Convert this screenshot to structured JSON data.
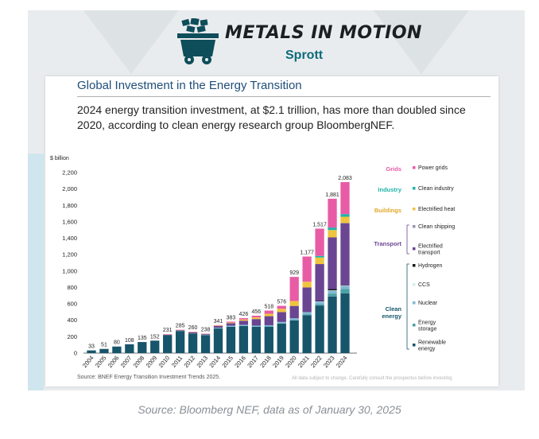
{
  "header": {
    "logo_text": "METALS IN MOTION",
    "logo_sub": "Sprott",
    "cart_icon": "mine-cart-icon"
  },
  "slide": {
    "title": "Global Investment in the Energy Transition",
    "subtitle": "2024 energy transition investment, at $2.1 trillion, has more than doubled since 2020, according to clean energy research group BloombergNEF.",
    "source": "Source: BNEF Energy Transition Investment Trends 2025.",
    "disclaimer": "All data subject to change. Carefully consult the prospectus before investing."
  },
  "caption": "Source: Bloomberg NEF, data as of January 30, 2025",
  "chart_data": {
    "type": "bar",
    "stacked": true,
    "ylabel": "$ billion",
    "ylim": [
      0,
      2200
    ],
    "yticks": [
      0,
      200,
      400,
      600,
      800,
      1000,
      1200,
      1400,
      1600,
      1800,
      2000,
      2200
    ],
    "ytick_labels": [
      "0",
      "200",
      "400",
      "600",
      "800",
      "1,000",
      "1,200",
      "1,400",
      "1,600",
      "1,800",
      "2,000",
      "2,200"
    ],
    "grid": false,
    "legend_placement": "right",
    "categories": [
      "2004",
      "2005",
      "2006",
      "2007",
      "2008",
      "2009",
      "2010",
      "2011",
      "2012",
      "2013",
      "2014",
      "2015",
      "2016",
      "2017",
      "2018",
      "2019",
      "2020",
      "2021",
      "2022",
      "2023",
      "2024"
    ],
    "totals": [
      33,
      51,
      80,
      108,
      135,
      152,
      231,
      285,
      260,
      238,
      341,
      383,
      426,
      456,
      518,
      576,
      929,
      1177,
      1517,
      1881,
      2083
    ],
    "total_labels": [
      "33",
      "51",
      "80",
      "108",
      "135",
      "152",
      "231",
      "285",
      "260",
      "238",
      "341",
      "383",
      "426",
      "456",
      "518",
      "576",
      "929",
      "1,177",
      "1,517",
      "1,881",
      "2,083"
    ],
    "series": [
      {
        "name": "Renewable energy",
        "color": "#17556b",
        "values": [
          33,
          51,
          80,
          108,
          135,
          152,
          220,
          270,
          240,
          220,
          300,
          320,
          330,
          320,
          320,
          360,
          400,
          460,
          580,
          690,
          728
        ]
      },
      {
        "name": "Energy storage",
        "color": "#4aa0a5",
        "values": [
          0,
          0,
          0,
          0,
          0,
          0,
          0,
          0,
          0,
          0,
          0,
          0,
          0,
          0,
          5,
          5,
          5,
          10,
          15,
          35,
          54
        ]
      },
      {
        "name": "Nuclear",
        "color": "#7fb8d2",
        "values": [
          0,
          0,
          0,
          0,
          0,
          0,
          0,
          2,
          2,
          5,
          10,
          15,
          15,
          15,
          15,
          15,
          20,
          30,
          30,
          35,
          34
        ]
      },
      {
        "name": "CCS",
        "color": "#d6ecef",
        "values": [
          0,
          0,
          0,
          0,
          0,
          0,
          0,
          0,
          0,
          0,
          0,
          0,
          0,
          0,
          0,
          0,
          0,
          0,
          5,
          5,
          6
        ]
      },
      {
        "name": "Hydrogen",
        "color": "#1a1a1a",
        "values": [
          0,
          0,
          0,
          0,
          0,
          0,
          0,
          0,
          0,
          0,
          0,
          0,
          0,
          0,
          0,
          0,
          0,
          0,
          5,
          15,
          5
        ]
      },
      {
        "name": "Electrified transport",
        "color": "#6a4592",
        "values": [
          0,
          0,
          0,
          0,
          0,
          0,
          5,
          8,
          10,
          8,
          20,
          30,
          50,
          80,
          110,
          120,
          150,
          300,
          450,
          630,
          757
        ]
      },
      {
        "name": "Clean shipping",
        "color": "#9c8fb5",
        "values": [
          0,
          0,
          0,
          0,
          0,
          0,
          0,
          0,
          0,
          0,
          0,
          0,
          0,
          0,
          0,
          0,
          0,
          0,
          0,
          0,
          1
        ]
      },
      {
        "name": "Electrified heat",
        "color": "#f0c43f",
        "values": [
          0,
          0,
          0,
          0,
          0,
          0,
          2,
          2,
          3,
          2,
          5,
          8,
          15,
          20,
          30,
          40,
          60,
          70,
          80,
          90,
          77
        ]
      },
      {
        "name": "Clean industry",
        "color": "#1fb4a8",
        "values": [
          0,
          0,
          0,
          0,
          0,
          0,
          0,
          0,
          0,
          0,
          0,
          0,
          0,
          0,
          0,
          0,
          0,
          0,
          20,
          30,
          32
        ]
      },
      {
        "name": "Power grids",
        "color": "#e85ca6",
        "values": [
          0,
          0,
          0,
          0,
          0,
          0,
          4,
          3,
          5,
          3,
          6,
          10,
          16,
          21,
          38,
          36,
          294,
          307,
          332,
          351,
          390
        ]
      }
    ],
    "legend_groups": [
      {
        "name": "Grids",
        "color": "#e85ca6",
        "items": [
          "Power grids"
        ]
      },
      {
        "name": "Industry",
        "color": "#1fb4a8",
        "items": [
          "Clean industry"
        ]
      },
      {
        "name": "Buildings",
        "color": "#f0c43f",
        "items": [
          "Electrified heat"
        ]
      },
      {
        "name": "Transport",
        "color": "#6a4592",
        "items": [
          "Clean shipping",
          "Electrified transport"
        ]
      },
      {
        "name": "Clean energy",
        "color": "#17556b",
        "items": [
          "Hydrogen",
          "CCS",
          "Nuclear",
          "Energy storage",
          "Renewable energy"
        ]
      }
    ]
  }
}
